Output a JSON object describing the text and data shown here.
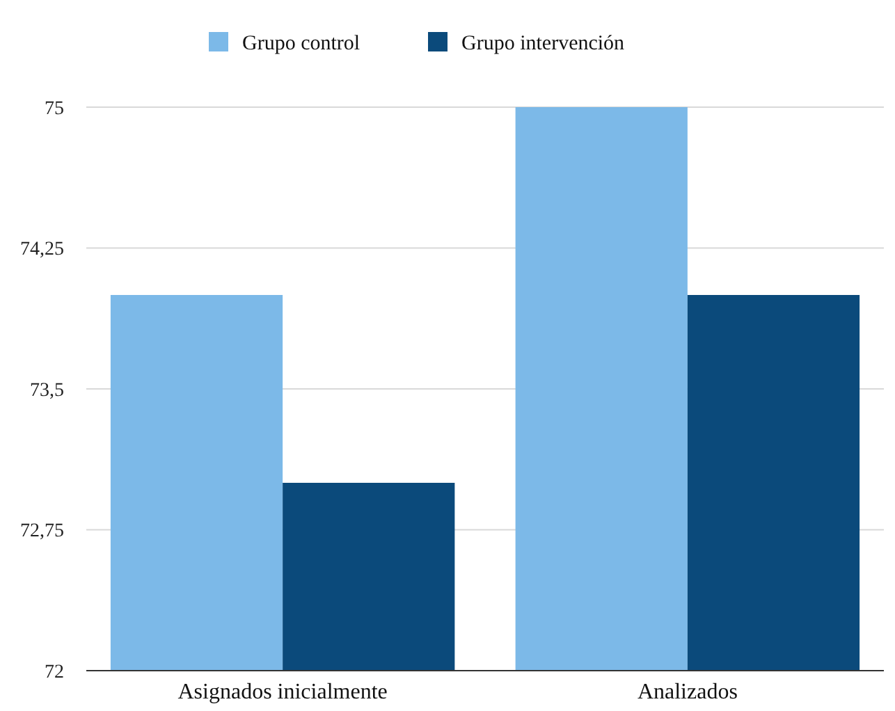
{
  "chart_data": {
    "type": "bar",
    "categories": [
      "Asignados inicialmente",
      "Analizados"
    ],
    "series": [
      {
        "name": "Grupo control",
        "color": "#7cb9e8",
        "values": [
          74,
          75
        ]
      },
      {
        "name": "Grupo intervención",
        "color": "#0b4a7b",
        "values": [
          73,
          74
        ]
      }
    ],
    "ylim": [
      72,
      75
    ],
    "yticks": [
      72,
      {
        "value": 72.75,
        "label": "72,75"
      },
      {
        "value": 73.5,
        "label": "73,5"
      },
      {
        "value": 74.25,
        "label": "74,25"
      },
      75
    ],
    "grid": "y",
    "legend": "top"
  }
}
